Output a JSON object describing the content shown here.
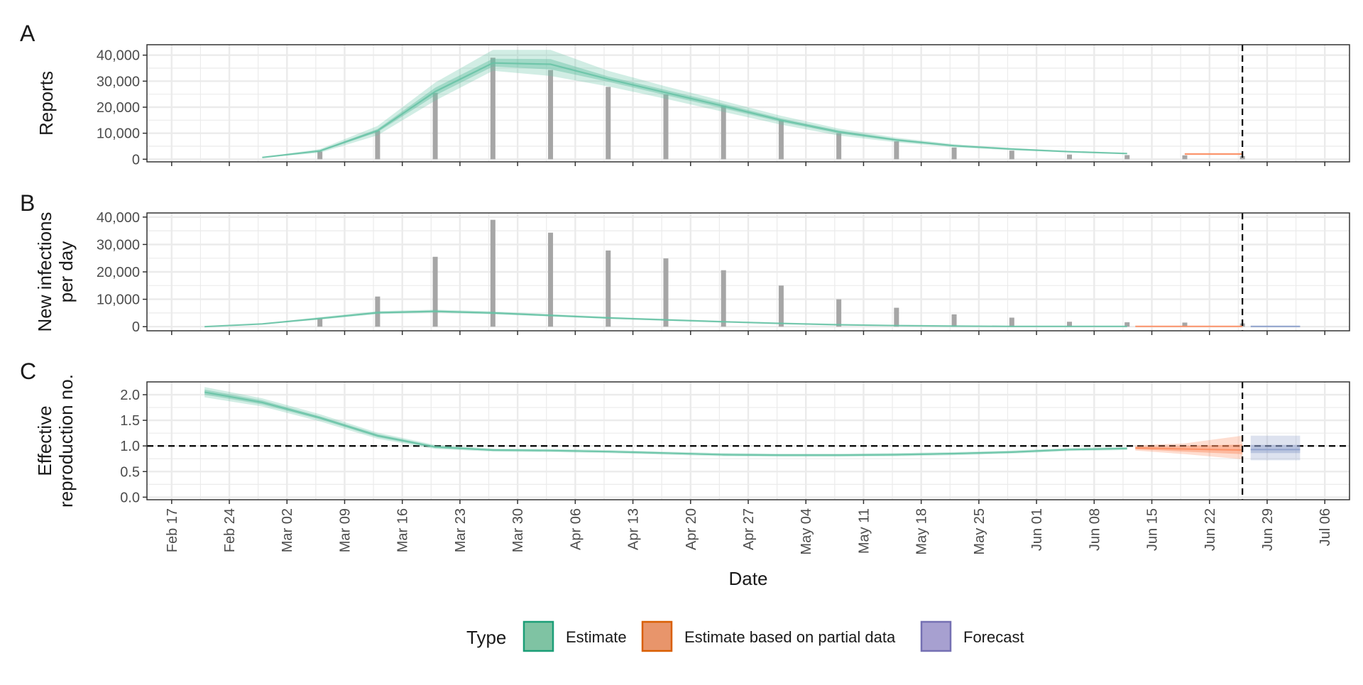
{
  "chart_data": {
    "type": "line",
    "xlabel": "Date",
    "date_range": [
      "2020-02-14",
      "2020-07-09"
    ],
    "x_ticks": [
      "Feb 17",
      "Feb 24",
      "Mar 02",
      "Mar 09",
      "Mar 16",
      "Mar 23",
      "Mar 30",
      "Apr 06",
      "Apr 13",
      "Apr 20",
      "Apr 27",
      "May 04",
      "May 11",
      "May 18",
      "May 25",
      "Jun 01",
      "Jun 08",
      "Jun 15",
      "Jun 22",
      "Jun 29",
      "Jul 06"
    ],
    "x_tick_dates": [
      "2020-02-17",
      "2020-02-24",
      "2020-03-02",
      "2020-03-09",
      "2020-03-16",
      "2020-03-23",
      "2020-03-30",
      "2020-04-06",
      "2020-04-13",
      "2020-04-20",
      "2020-04-27",
      "2020-05-04",
      "2020-05-11",
      "2020-05-18",
      "2020-05-25",
      "2020-06-01",
      "2020-06-08",
      "2020-06-15",
      "2020-06-22",
      "2020-06-29",
      "2020-07-06"
    ],
    "estimate_date": "2020-06-26",
    "grid": true,
    "colors": {
      "estimate": "#66c2a5",
      "partial": "#fc8d62",
      "forecast": "#8da0cb",
      "bars": "#a6a6a6",
      "grid": "#ebebeb",
      "panel_border": "#333333"
    },
    "reported_cases": {
      "dates": [
        "2020-03-06",
        "2020-03-13",
        "2020-03-20",
        "2020-03-27",
        "2020-04-03",
        "2020-04-10",
        "2020-04-17",
        "2020-04-24",
        "2020-05-01",
        "2020-05-08",
        "2020-05-15",
        "2020-05-22",
        "2020-05-29",
        "2020-06-05",
        "2020-06-12",
        "2020-06-19",
        "2020-06-26"
      ],
      "values": [
        3000,
        11000,
        25500,
        39000,
        34300,
        27800,
        24900,
        20600,
        15000,
        10000,
        6900,
        4500,
        3300,
        1800,
        1600,
        1500,
        1200
      ]
    },
    "legend": {
      "title": "Type",
      "position": "bottom",
      "entries": [
        {
          "label": "Estimate",
          "fill": "#7fc3a3",
          "stroke": "#1b9e77"
        },
        {
          "label": "Estimate based on partial data",
          "fill": "#e8956b",
          "stroke": "#d95f02"
        },
        {
          "label": "Forecast",
          "fill": "#a7a0d0",
          "stroke": "#7570b3"
        }
      ]
    },
    "panels": [
      {
        "tag": "A",
        "ylabel": [
          "Reports"
        ],
        "ylim": [
          -1000,
          44000
        ],
        "y_ticks": [
          0,
          10000,
          20000,
          30000,
          40000
        ],
        "y_tick_labels": [
          "0",
          "10,000",
          "20,000",
          "30,000",
          "40,000"
        ],
        "bars": true,
        "series": [
          {
            "type": "estimate",
            "dates": [
              "2020-02-28",
              "2020-03-06",
              "2020-03-13",
              "2020-03-20",
              "2020-03-27",
              "2020-04-03",
              "2020-04-10",
              "2020-04-17",
              "2020-04-24",
              "2020-05-01",
              "2020-05-08",
              "2020-05-15",
              "2020-05-22",
              "2020-05-29",
              "2020-06-05",
              "2020-06-12"
            ],
            "median": [
              700,
              3200,
              11000,
              26000,
              37000,
              36500,
              30800,
              25600,
              20400,
              15000,
              10500,
              7400,
              5200,
              3900,
              2900,
              2200
            ],
            "lower90": [
              600,
              2500,
              9200,
              22500,
              34000,
              32000,
              28000,
              23200,
              18200,
              13300,
              9100,
              6500,
              4600,
              3500,
              2600,
              2000
            ],
            "upper90": [
              800,
              3900,
              12800,
              29500,
              42000,
              42000,
              34000,
              28000,
              22400,
              16700,
              11800,
              8300,
              5800,
              4300,
              3200,
              2500
            ],
            "lower50": [
              650,
              2900,
              10400,
              24500,
              35600,
              34500,
              29800,
              24600,
              19500,
              14300,
              9900,
              7000,
              4950,
              3750,
              2780,
              2120
            ],
            "upper50": [
              750,
              3500,
              11600,
              27500,
              38600,
              38500,
              31800,
              26600,
              21300,
              15700,
              11100,
              7800,
              5450,
              4050,
              3020,
              2280
            ]
          },
          {
            "type": "partial",
            "dates": [
              "2020-06-19",
              "2020-06-26"
            ],
            "median": [
              2000,
              2000
            ],
            "lower90": [
              1700,
              1700
            ],
            "upper90": [
              2300,
              2300
            ],
            "lower50": [
              1850,
              1850
            ],
            "upper50": [
              2150,
              2150
            ]
          }
        ]
      },
      {
        "tag": "B",
        "ylabel": [
          "New infections",
          "per day"
        ],
        "ylim": [
          -1500,
          41500
        ],
        "y_ticks": [
          0,
          10000,
          20000,
          30000,
          40000
        ],
        "y_tick_labels": [
          "0",
          "10,000",
          "20,000",
          "30,000",
          "40,000"
        ],
        "bars": true,
        "series": [
          {
            "type": "estimate",
            "dates": [
              "2020-02-21",
              "2020-02-28",
              "2020-03-06",
              "2020-03-13",
              "2020-03-20",
              "2020-03-27",
              "2020-04-03",
              "2020-04-10",
              "2020-04-17",
              "2020-04-24",
              "2020-05-01",
              "2020-05-08",
              "2020-05-15",
              "2020-05-22",
              "2020-05-29",
              "2020-06-05",
              "2020-06-12"
            ],
            "median": [
              0,
              1000,
              3000,
              5100,
              5600,
              5000,
              4100,
              3200,
              2500,
              1800,
              1200,
              700,
              400,
              200,
              100,
              100,
              100
            ],
            "lower90": [
              0,
              800,
              2600,
              4600,
              5100,
              4500,
              3700,
              2900,
              2200,
              1600,
              1000,
              600,
              300,
              100,
              0,
              0,
              0
            ],
            "upper90": [
              100,
              1200,
              3500,
              5700,
              6200,
              5600,
              4600,
              3600,
              2800,
              2100,
              1400,
              900,
              500,
              300,
              200,
              200,
              200
            ],
            "lower50": [
              0,
              900,
              2800,
              4850,
              5350,
              4750,
              3900,
              3050,
              2350,
              1700,
              1100,
              650,
              350,
              150,
              50,
              50,
              50
            ],
            "upper50": [
              50,
              1100,
              3250,
              5400,
              5900,
              5300,
              4350,
              3400,
              2650,
              1950,
              1300,
              800,
              450,
              250,
              150,
              150,
              150
            ]
          },
          {
            "type": "partial",
            "dates": [
              "2020-06-13",
              "2020-06-26"
            ],
            "median": [
              100,
              100
            ],
            "lower90": [
              0,
              0
            ],
            "upper90": [
              250,
              250
            ],
            "lower50": [
              50,
              50
            ],
            "upper50": [
              150,
              150
            ]
          },
          {
            "type": "forecast",
            "dates": [
              "2020-06-27",
              "2020-07-03"
            ],
            "median": [
              80,
              80
            ],
            "lower90": [
              0,
              0
            ],
            "upper90": [
              250,
              250
            ],
            "lower50": [
              40,
              40
            ],
            "upper50": [
              150,
              150
            ]
          }
        ]
      },
      {
        "tag": "C",
        "ylabel": [
          "Effective",
          "reproduction no."
        ],
        "ylim": [
          -0.05,
          2.25
        ],
        "y_ticks": [
          0,
          0.5,
          1.0,
          1.5,
          2.0
        ],
        "y_tick_labels": [
          "0.0",
          "0.5",
          "1.0",
          "1.5",
          "2.0"
        ],
        "bars": false,
        "reference_line": 1.0,
        "series": [
          {
            "type": "estimate",
            "dates": [
              "2020-02-21",
              "2020-02-28",
              "2020-03-06",
              "2020-03-13",
              "2020-03-20",
              "2020-03-27",
              "2020-04-03",
              "2020-04-10",
              "2020-04-17",
              "2020-04-24",
              "2020-05-01",
              "2020-05-08",
              "2020-05-15",
              "2020-05-22",
              "2020-05-29",
              "2020-06-05",
              "2020-06-12"
            ],
            "median": [
              2.05,
              1.85,
              1.55,
              1.2,
              0.98,
              0.92,
              0.91,
              0.89,
              0.86,
              0.83,
              0.82,
              0.82,
              0.83,
              0.85,
              0.88,
              0.93,
              0.95
            ],
            "lower90": [
              1.95,
              1.77,
              1.48,
              1.14,
              0.94,
              0.89,
              0.88,
              0.86,
              0.83,
              0.8,
              0.79,
              0.79,
              0.8,
              0.82,
              0.85,
              0.9,
              0.92
            ],
            "upper90": [
              2.15,
              1.93,
              1.62,
              1.26,
              1.02,
              0.95,
              0.94,
              0.92,
              0.89,
              0.86,
              0.85,
              0.85,
              0.86,
              0.88,
              0.91,
              0.96,
              0.98
            ],
            "lower50": [
              2.0,
              1.81,
              1.52,
              1.17,
              0.96,
              0.905,
              0.895,
              0.875,
              0.845,
              0.815,
              0.805,
              0.805,
              0.815,
              0.835,
              0.865,
              0.915,
              0.935
            ],
            "upper50": [
              2.1,
              1.89,
              1.58,
              1.23,
              1.0,
              0.935,
              0.925,
              0.905,
              0.875,
              0.845,
              0.835,
              0.835,
              0.845,
              0.865,
              0.895,
              0.945,
              0.965
            ]
          },
          {
            "type": "partial",
            "dates": [
              "2020-06-13",
              "2020-06-19",
              "2020-06-26"
            ],
            "median": [
              0.96,
              0.94,
              0.92
            ],
            "lower90": [
              0.91,
              0.84,
              0.74
            ],
            "upper90": [
              1.01,
              1.05,
              1.2
            ],
            "lower50": [
              0.935,
              0.89,
              0.84
            ],
            "upper50": [
              0.985,
              1.0,
              1.03
            ]
          },
          {
            "type": "forecast",
            "dates": [
              "2020-06-27",
              "2020-07-03"
            ],
            "median": [
              0.93,
              0.93
            ],
            "lower90": [
              0.72,
              0.72
            ],
            "upper90": [
              1.2,
              1.2
            ],
            "lower50": [
              0.86,
              0.86
            ],
            "upper50": [
              1.02,
              1.02
            ]
          }
        ]
      }
    ]
  }
}
